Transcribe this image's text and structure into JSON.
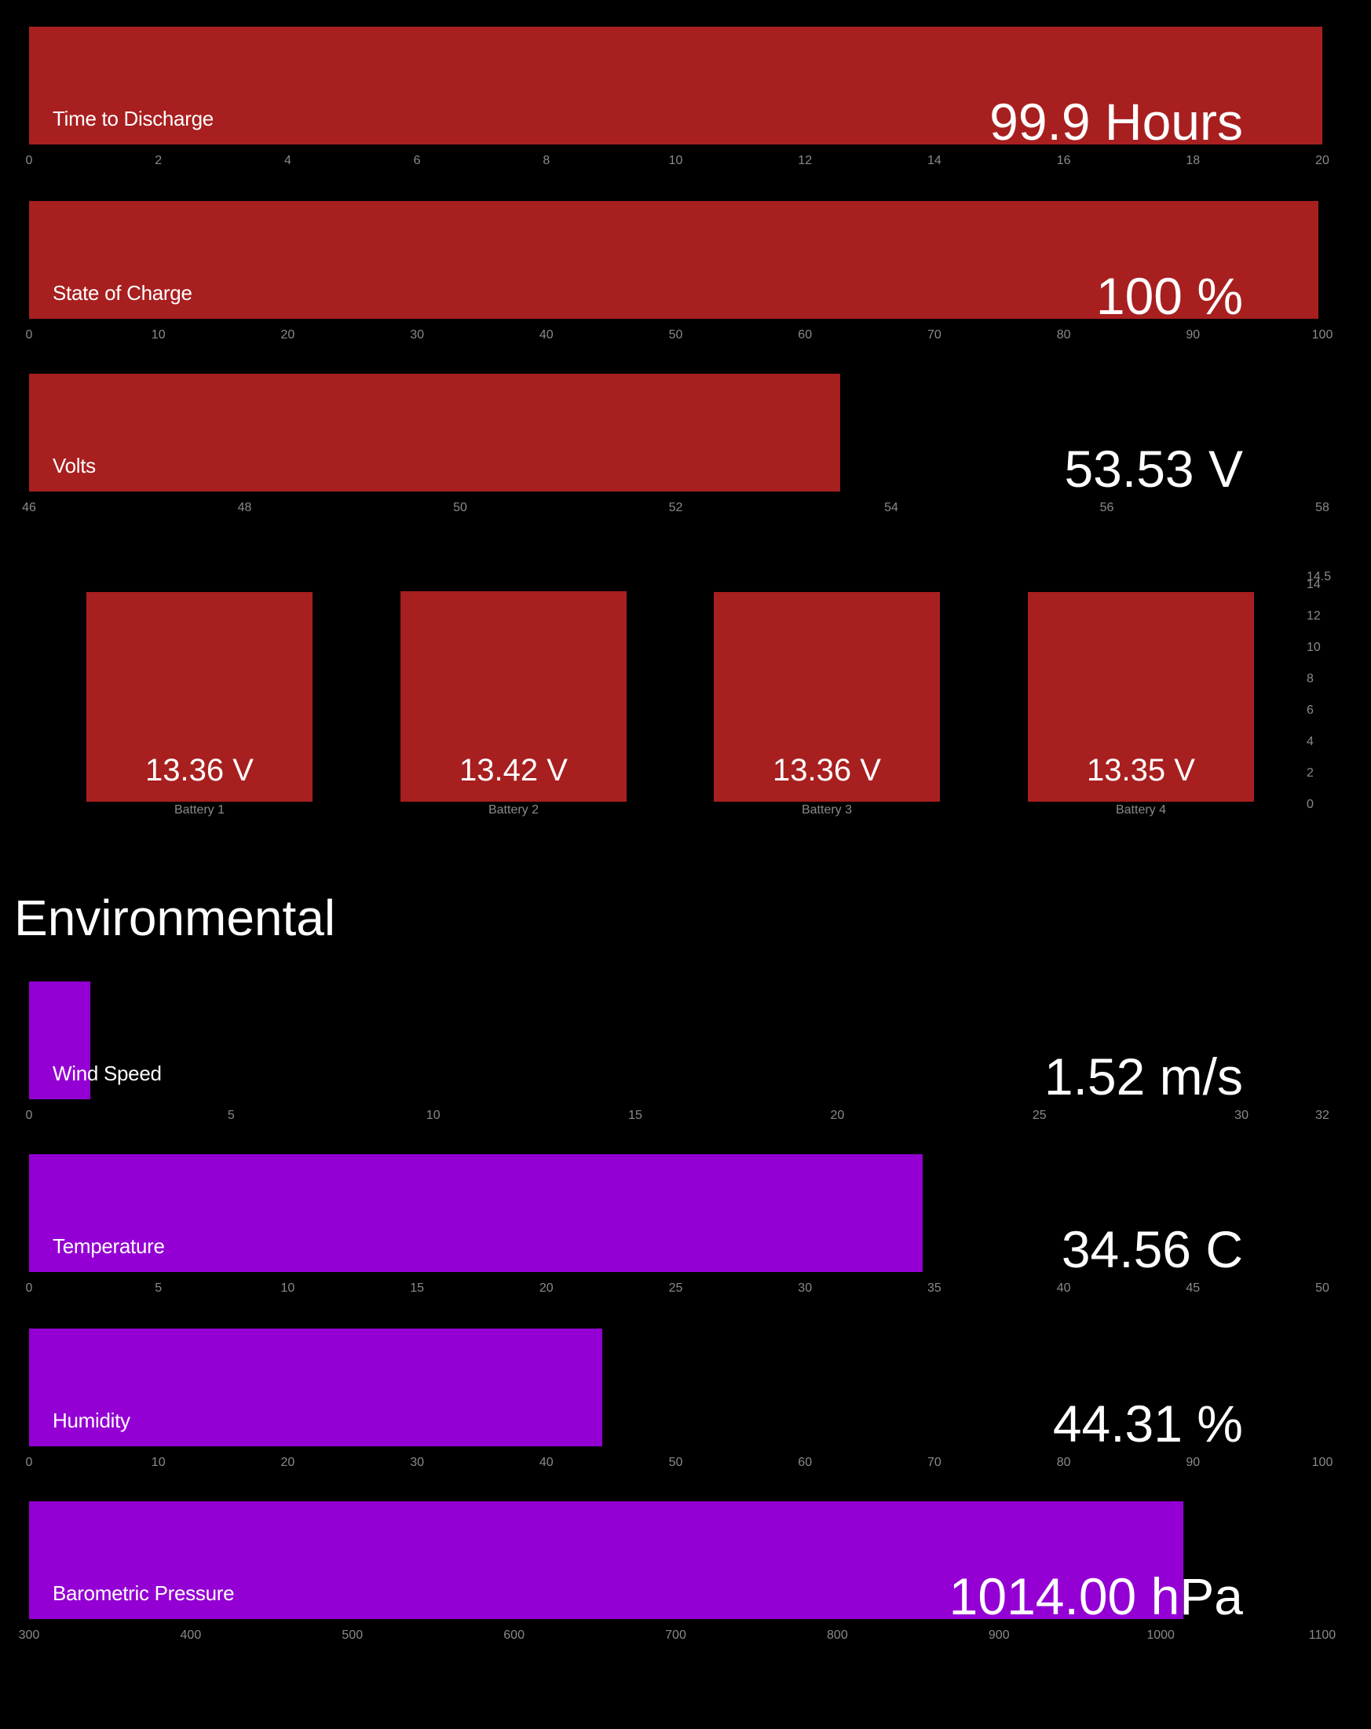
{
  "chart_data": [
    {
      "type": "bar",
      "label": "Time to Discharge",
      "value": 20,
      "display": "99.9 Hours",
      "xlim": [
        0,
        20
      ],
      "ticks": [
        0,
        2,
        4,
        6,
        8,
        10,
        12,
        14,
        16,
        18,
        20
      ],
      "color": "#a81f1f"
    },
    {
      "type": "bar",
      "label": "State of Charge",
      "value": 99.7,
      "display": "100 %",
      "xlim": [
        0,
        100
      ],
      "ticks": [
        0,
        10,
        20,
        30,
        40,
        50,
        60,
        70,
        80,
        90,
        100
      ],
      "color": "#a81f1f"
    },
    {
      "type": "bar",
      "label": "Volts",
      "value": 53.53,
      "display": "53.53 V",
      "xlim": [
        46,
        58
      ],
      "ticks": [
        46,
        48,
        50,
        52,
        54,
        56,
        58
      ],
      "color": "#a81f1f"
    },
    {
      "type": "bar",
      "categories": [
        "Battery 1",
        "Battery 2",
        "Battery 3",
        "Battery 4"
      ],
      "values": [
        13.36,
        13.42,
        13.36,
        13.35
      ],
      "value_labels": [
        "13.36 V",
        "13.42 V",
        "13.36 V",
        "13.35 V"
      ],
      "ylim": [
        0,
        14.5
      ],
      "yticks": [
        "0",
        "2",
        "4",
        "6",
        "8",
        "10",
        "12",
        "14",
        "14.5"
      ],
      "color": "#a81f1f"
    },
    {
      "type": "bar",
      "label": "Wind Speed",
      "value": 1.52,
      "display": "1.52 m/s",
      "xlim": [
        0,
        32
      ],
      "ticks": [
        0,
        5,
        10,
        15,
        20,
        25,
        30,
        32
      ],
      "color": "#9400d3"
    },
    {
      "type": "bar",
      "label": "Temperature",
      "value": 34.56,
      "display": "34.56 C",
      "xlim": [
        0,
        50
      ],
      "ticks": [
        0,
        5,
        10,
        15,
        20,
        25,
        30,
        35,
        40,
        45,
        50
      ],
      "color": "#9400d3"
    },
    {
      "type": "bar",
      "label": "Humidity",
      "value": 44.31,
      "display": "44.31 %",
      "xlim": [
        0,
        100
      ],
      "ticks": [
        0,
        10,
        20,
        30,
        40,
        50,
        60,
        70,
        80,
        90,
        100
      ],
      "color": "#9400d3"
    },
    {
      "type": "bar",
      "label": "Barometric Pressure",
      "value": 1014.0,
      "display": "1014.00 hPa",
      "xlim": [
        300,
        1100
      ],
      "ticks": [
        300,
        400,
        500,
        600,
        700,
        800,
        900,
        1000,
        1100
      ],
      "color": "#9400d3"
    }
  ],
  "section": {
    "title": "Environmental"
  }
}
